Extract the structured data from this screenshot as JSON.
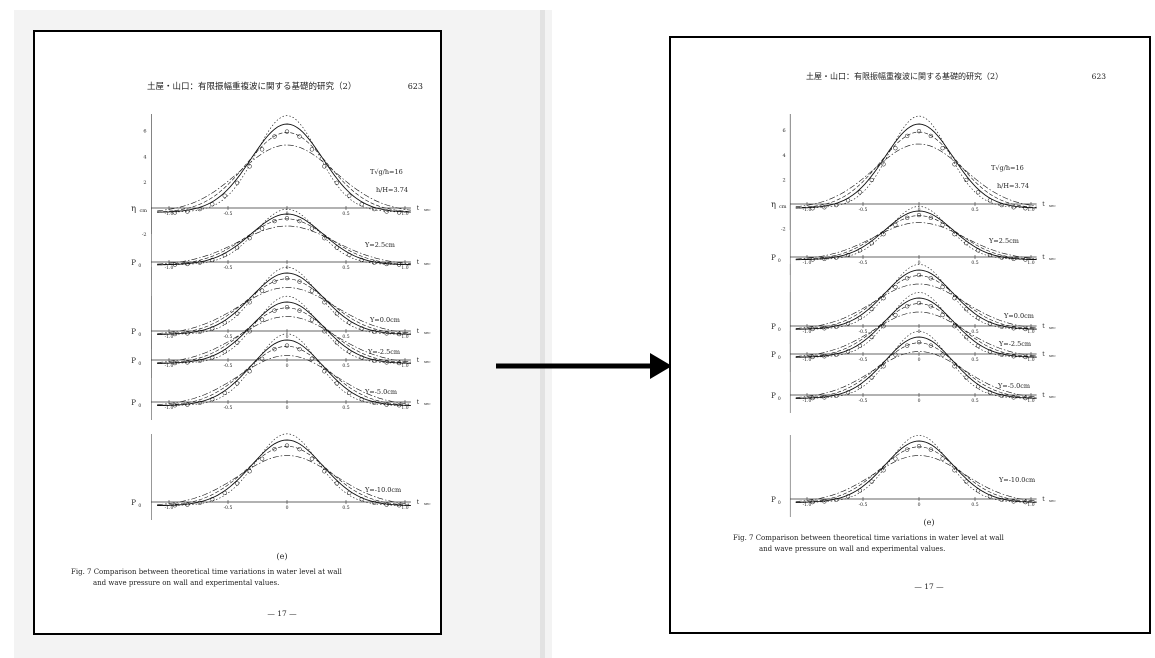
{
  "page": {
    "header": "土屋・山口：有限振幅重複波に関する基礎的研究（2）",
    "header_right": "土屋・山口：有限振幅重複波に関する基礎的研究（2）",
    "page_number": "623",
    "figure_label": "(e)",
    "caption_line1": "Fig. 7  Comparison between theoretical time variations in water level at wall",
    "caption_line2": "and wave pressure on wall and experimental values.",
    "footer": "— 17 —",
    "y_labels": {
      "eta": "η",
      "eta_unit": "cm",
      "p": "P",
      "p_sub": "0"
    },
    "t_label": "t",
    "t_unit": "sec",
    "params": {
      "t_param": "T√g/h=16",
      "h_param": "h/H=3.74"
    },
    "x_ticks": [
      "-1.0",
      "-0.5",
      "0",
      "0.5",
      "1.0"
    ],
    "y_ticks_eta": [
      "6",
      "4",
      "2",
      "-2"
    ],
    "depth_labels": [
      "Y=2.5cm",
      "Y=0.0cm",
      "Y=-2.5cm",
      "Y=-5.0cm",
      "Y=-10.0cm"
    ]
  }
}
